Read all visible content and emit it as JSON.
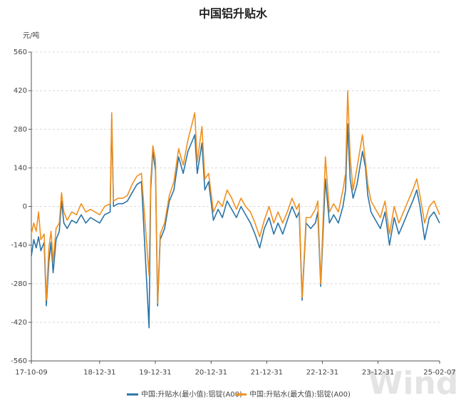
{
  "chart_data": {
    "type": "line",
    "title": "中国铝升贴水",
    "y_label": "元/吨",
    "watermark": "Wind",
    "xlim": [
      "2017-10-09",
      "2025-02-07"
    ],
    "xticks": [
      {
        "value": "2017-10-09",
        "label": "17-10-09"
      },
      {
        "value": "2018-12-31",
        "label": "18-12-31"
      },
      {
        "value": "2019-12-31",
        "label": "19-12-31"
      },
      {
        "value": "2020-12-31",
        "label": "20-12-31"
      },
      {
        "value": "2021-12-31",
        "label": "21-12-31"
      },
      {
        "value": "2022-12-31",
        "label": "22-12-31"
      },
      {
        "value": "2023-12-31",
        "label": "23-12-31"
      },
      {
        "value": "2025-02-07",
        "label": "25-02-07"
      }
    ],
    "ylim": [
      -560,
      560
    ],
    "yticks": [
      -560,
      -420,
      -280,
      -140,
      0,
      140,
      280,
      420,
      560
    ],
    "grid": true,
    "x": [
      "2017-10-09",
      "2017-10-25",
      "2017-11-10",
      "2017-11-25",
      "2017-12-10",
      "2018-01-01",
      "2018-01-15",
      "2018-02-01",
      "2018-02-15",
      "2018-03-01",
      "2018-03-20",
      "2018-04-10",
      "2018-04-25",
      "2018-05-10",
      "2018-06-01",
      "2018-07-01",
      "2018-08-01",
      "2018-09-01",
      "2018-10-01",
      "2018-11-01",
      "2018-12-31",
      "2019-02-01",
      "2019-03-10",
      "2019-03-20",
      "2019-04-01",
      "2019-05-01",
      "2019-06-01",
      "2019-07-01",
      "2019-08-01",
      "2019-09-01",
      "2019-10-01",
      "2019-11-20",
      "2019-12-01",
      "2019-12-15",
      "2020-01-01",
      "2020-01-15",
      "2020-02-01",
      "2020-03-01",
      "2020-04-01",
      "2020-05-01",
      "2020-06-01",
      "2020-07-01",
      "2020-08-01",
      "2020-09-15",
      "2020-10-01",
      "2020-11-01",
      "2020-11-20",
      "2020-12-15",
      "2021-01-15",
      "2021-02-15",
      "2021-03-15",
      "2021-04-15",
      "2021-05-15",
      "2021-06-15",
      "2021-07-15",
      "2021-08-15",
      "2021-09-15",
      "2021-10-15",
      "2021-11-15",
      "2021-12-15",
      "2022-01-15",
      "2022-02-15",
      "2022-03-15",
      "2022-04-15",
      "2022-05-15",
      "2022-06-15",
      "2022-07-15",
      "2022-08-01",
      "2022-08-20",
      "2022-09-15",
      "2022-10-15",
      "2022-11-15",
      "2022-12-01",
      "2022-12-20",
      "2023-01-20",
      "2023-02-15",
      "2023-03-15",
      "2023-04-15",
      "2023-05-15",
      "2023-06-01",
      "2023-06-15",
      "2023-07-01",
      "2023-07-20",
      "2023-08-15",
      "2023-09-20",
      "2023-10-10",
      "2023-10-25",
      "2023-11-15",
      "2023-12-15",
      "2024-01-15",
      "2024-02-15",
      "2024-03-15",
      "2024-04-15",
      "2024-05-15",
      "2024-06-15",
      "2024-07-15",
      "2024-08-15",
      "2024-09-10",
      "2024-10-01",
      "2024-11-01",
      "2024-12-01",
      "2025-01-01",
      "2025-02-07"
    ],
    "series": [
      {
        "name": "中国:升贴水(最小值):铝锭(A00)",
        "color": "#2a74a8",
        "values": [
          -180,
          -120,
          -150,
          -110,
          -160,
          -130,
          -360,
          -200,
          -130,
          -240,
          -120,
          -90,
          20,
          -60,
          -80,
          -50,
          -60,
          -30,
          -60,
          -40,
          -60,
          -30,
          -20,
          320,
          0,
          10,
          10,
          20,
          50,
          80,
          90,
          -440,
          60,
          200,
          130,
          -360,
          -120,
          -80,
          20,
          60,
          180,
          120,
          200,
          260,
          120,
          230,
          60,
          90,
          -50,
          -10,
          -40,
          20,
          -10,
          -40,
          0,
          -30,
          -60,
          -100,
          -150,
          -80,
          -40,
          -100,
          -60,
          -100,
          -50,
          0,
          -40,
          -20,
          -340,
          -60,
          -80,
          -60,
          -20,
          -290,
          100,
          -60,
          -30,
          -60,
          0,
          60,
          300,
          100,
          30,
          80,
          200,
          140,
          40,
          -20,
          -50,
          -80,
          -20,
          -140,
          -40,
          -100,
          -60,
          -20,
          20,
          60,
          0,
          -120,
          -40,
          -20,
          -60
        ]
      },
      {
        "name": "中国:升贴水(最大值):铝锭(A00)",
        "color": "#f0901e",
        "values": [
          -100,
          -60,
          -90,
          -20,
          -120,
          -100,
          -340,
          -150,
          -90,
          -200,
          -80,
          -60,
          50,
          -20,
          -50,
          -20,
          -30,
          10,
          -20,
          -10,
          -30,
          0,
          10,
          340,
          20,
          30,
          30,
          40,
          80,
          110,
          120,
          -250,
          90,
          220,
          170,
          -350,
          -100,
          -60,
          40,
          90,
          210,
          150,
          240,
          340,
          160,
          290,
          100,
          120,
          -20,
          20,
          0,
          60,
          30,
          -10,
          30,
          0,
          -20,
          -60,
          -110,
          -50,
          0,
          -60,
          -20,
          -60,
          -20,
          30,
          -10,
          10,
          -330,
          -40,
          -40,
          -10,
          20,
          -280,
          180,
          -20,
          10,
          -20,
          60,
          120,
          420,
          180,
          60,
          140,
          260,
          160,
          80,
          20,
          -10,
          -40,
          20,
          -100,
          0,
          -60,
          -20,
          20,
          60,
          100,
          40,
          -60,
          0,
          20,
          -30
        ]
      }
    ],
    "legend": "bottom"
  }
}
